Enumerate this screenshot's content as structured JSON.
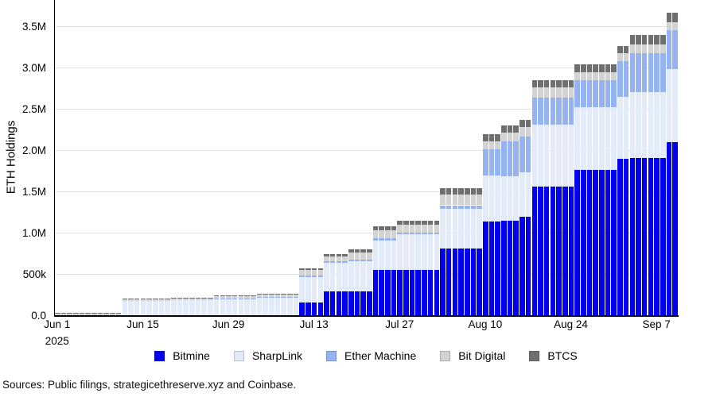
{
  "footer": {
    "sources_note": "Sources: Public filings, strategicethreserve.xyz and Coinbase."
  },
  "chart_data": {
    "type": "bar",
    "stacked": true,
    "title": "",
    "xlabel": "",
    "ylabel": "ETH Holdings",
    "grid": true,
    "legend_position": "bottom",
    "units": "thousand ETH",
    "start_date": "Jun 1, 2025",
    "end_date": "Sep 10, 2025",
    "days_total": 102,
    "ylim_k": [
      0,
      3820
    ],
    "y_ticks": [
      {
        "v": 0,
        "label": "0.0"
      },
      {
        "v": 500,
        "label": "500k"
      },
      {
        "v": 1000,
        "label": "1.0M"
      },
      {
        "v": 1500,
        "label": "1.5M"
      },
      {
        "v": 2000,
        "label": "2.0M"
      },
      {
        "v": 2500,
        "label": "2.5M"
      },
      {
        "v": 3000,
        "label": "3.0M"
      },
      {
        "v": 3500,
        "label": "3.5M"
      }
    ],
    "x_ticks": [
      {
        "day": 0,
        "label": "Jun 1"
      },
      {
        "day": 14,
        "label": "Jun 15"
      },
      {
        "day": 28,
        "label": "Jun 29"
      },
      {
        "day": 42,
        "label": "Jul 13"
      },
      {
        "day": 56,
        "label": "Jul 27"
      },
      {
        "day": 70,
        "label": "Aug 10"
      },
      {
        "day": 84,
        "label": "Aug 24"
      },
      {
        "day": 98,
        "label": "Sep 7"
      }
    ],
    "x_year_label": "2025",
    "series_order": [
      "Bitmine",
      "SharpLink",
      "Ether Machine",
      "Bit Digital",
      "BTCS"
    ],
    "series_colors": {
      "Bitmine": "#0000ee",
      "SharpLink": "#e3eaf8",
      "Ether Machine": "#94b3f0",
      "Bit Digital": "#d3d3d3",
      "BTCS": "#6f6f6f"
    },
    "legend": [
      {
        "label": "Bitmine",
        "color": "#0000ee"
      },
      {
        "label": "SharpLink",
        "color": "#e3eaf8"
      },
      {
        "label": "Ether Machine",
        "color": "#94b3f0"
      },
      {
        "label": "Bit Digital",
        "color": "#d3d3d3"
      },
      {
        "label": "BTCS",
        "color": "#6f6f6f"
      }
    ],
    "clusters_k": [
      {
        "dates": "Jun 1-11",
        "from_day": 0,
        "to_day": 10,
        "values": {
          "Bitmine": 0,
          "SharpLink": 0,
          "Ether Machine": 0,
          "Bit Digital": 22,
          "BTCS": 6
        }
      },
      {
        "dates": "Jun 12-19",
        "from_day": 11,
        "to_day": 18,
        "values": {
          "Bitmine": 0,
          "SharpLink": 172,
          "Ether Machine": 0,
          "Bit Digital": 20,
          "BTCS": 6
        }
      },
      {
        "dates": "Jun 20-26",
        "from_day": 19,
        "to_day": 25,
        "values": {
          "Bitmine": 0,
          "SharpLink": 180,
          "Ether Machine": 0,
          "Bit Digital": 21,
          "BTCS": 7
        }
      },
      {
        "dates": "Jun 27-Jul 3",
        "from_day": 26,
        "to_day": 32,
        "values": {
          "Bitmine": 0,
          "SharpLink": 196,
          "Ether Machine": 8,
          "Bit Digital": 26,
          "BTCS": 8
        }
      },
      {
        "dates": "Jul 4-10",
        "from_day": 33,
        "to_day": 39,
        "values": {
          "Bitmine": 0,
          "SharpLink": 210,
          "Ether Machine": 14,
          "Bit Digital": 28,
          "BTCS": 10
        }
      },
      {
        "dates": "Jul 11-14",
        "from_day": 40,
        "to_day": 43,
        "values": {
          "Bitmine": 152,
          "SharpLink": 310,
          "Ether Machine": 20,
          "Bit Digital": 62,
          "BTCS": 26
        }
      },
      {
        "dates": "Jul 15-18",
        "from_day": 44,
        "to_day": 47,
        "values": {
          "Bitmine": 284,
          "SharpLink": 350,
          "Ether Machine": 21,
          "Bit Digital": 56,
          "BTCS": 29
        }
      },
      {
        "dates": "Jul 19-22",
        "from_day": 48,
        "to_day": 51,
        "values": {
          "Bitmine": 290,
          "SharpLink": 363,
          "Ether Machine": 22,
          "Bit Digital": 85,
          "BTCS": 35
        }
      },
      {
        "dates": "Jul 23-26",
        "from_day": 52,
        "to_day": 55,
        "values": {
          "Bitmine": 546,
          "SharpLink": 358,
          "Ether Machine": 28,
          "Bit Digital": 100,
          "BTCS": 42
        }
      },
      {
        "dates": "Jul 27-Aug 2",
        "from_day": 56,
        "to_day": 62,
        "values": {
          "Bitmine": 546,
          "SharpLink": 432,
          "Ether Machine": 25,
          "Bit Digital": 93,
          "BTCS": 52
        }
      },
      {
        "dates": "Aug 3-9",
        "from_day": 63,
        "to_day": 69,
        "values": {
          "Bitmine": 808,
          "SharpLink": 478,
          "Ether Machine": 46,
          "Bit Digital": 128,
          "BTCS": 76
        }
      },
      {
        "dates": "Aug 10-12",
        "from_day": 70,
        "to_day": 72,
        "values": {
          "Bitmine": 1130,
          "SharpLink": 560,
          "Ether Machine": 320,
          "Bit Digital": 100,
          "BTCS": 82
        }
      },
      {
        "dates": "Aug 13-15",
        "from_day": 73,
        "to_day": 75,
        "values": {
          "Bitmine": 1145,
          "SharpLink": 540,
          "Ether Machine": 420,
          "Bit Digital": 105,
          "BTCS": 88
        }
      },
      {
        "dates": "Aug 16-17",
        "from_day": 76,
        "to_day": 77,
        "values": {
          "Bitmine": 1190,
          "SharpLink": 545,
          "Ether Machine": 430,
          "Bit Digital": 110,
          "BTCS": 90
        }
      },
      {
        "dates": "Aug 18-24",
        "from_day": 78,
        "to_day": 84,
        "values": {
          "Bitmine": 1554,
          "SharpLink": 757,
          "Ether Machine": 322,
          "Bit Digital": 130,
          "BTCS": 80
        }
      },
      {
        "dates": "Aug 25-31",
        "from_day": 85,
        "to_day": 91,
        "values": {
          "Bitmine": 1763,
          "SharpLink": 758,
          "Ether Machine": 322,
          "Bit Digital": 100,
          "BTCS": 97
        }
      },
      {
        "dates": "Sep 1-2",
        "from_day": 92,
        "to_day": 93,
        "values": {
          "Bitmine": 1890,
          "SharpLink": 755,
          "Ether Machine": 435,
          "Bit Digital": 97,
          "BTCS": 85
        }
      },
      {
        "dates": "Sep 3-8",
        "from_day": 94,
        "to_day": 99,
        "values": {
          "Bitmine": 1900,
          "SharpLink": 800,
          "Ether Machine": 470,
          "Bit Digital": 112,
          "BTCS": 110
        }
      },
      {
        "dates": "Sep 9-10",
        "from_day": 100,
        "to_day": 101,
        "values": {
          "Bitmine": 2100,
          "SharpLink": 880,
          "Ether Machine": 470,
          "Bit Digital": 100,
          "BTCS": 110
        }
      }
    ]
  }
}
